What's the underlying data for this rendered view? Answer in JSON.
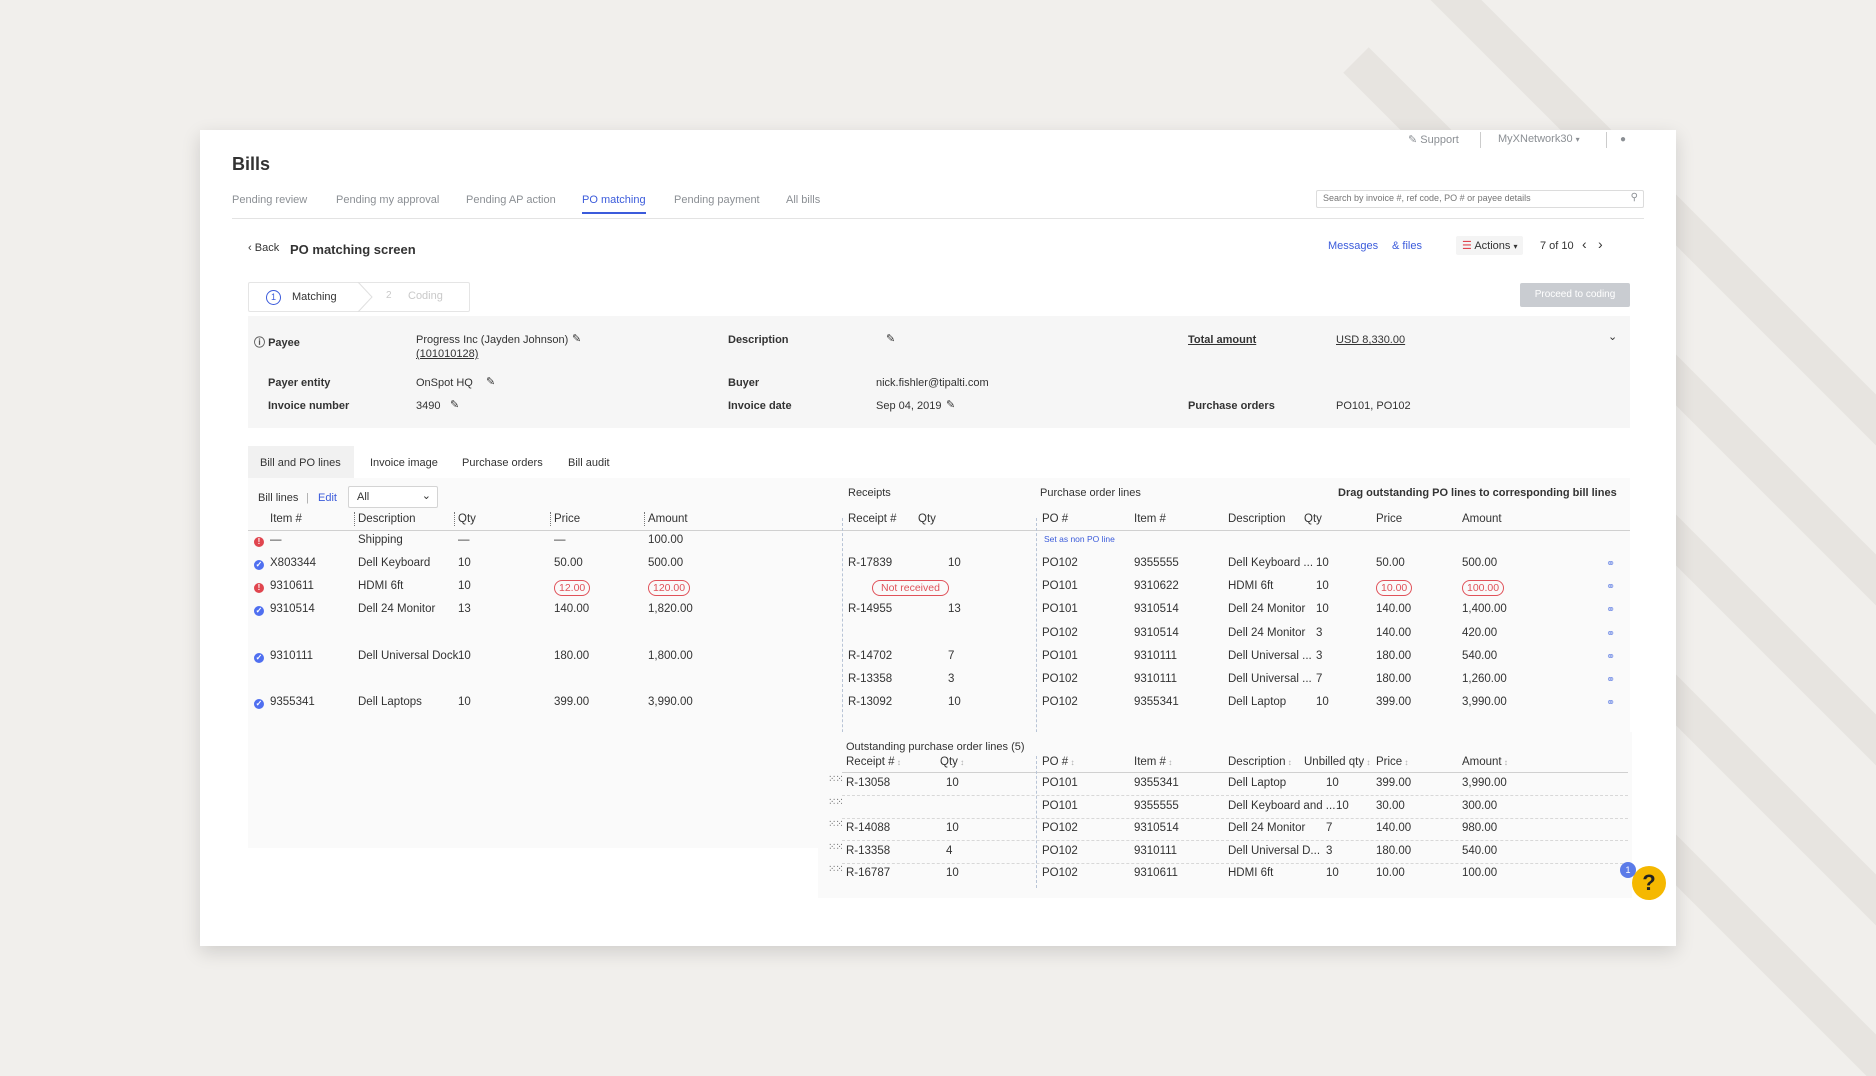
{
  "page": {
    "title": "Bills"
  },
  "topbar": {
    "support": "Support",
    "network": "MyXNetwork30"
  },
  "tabs": [
    "Pending review",
    "Pending my approval",
    "Pending AP action",
    "PO matching",
    "Pending payment",
    "All bills"
  ],
  "search": {
    "placeholder": "Search by invoice #, ref code, PO # or payee details"
  },
  "subheader": {
    "back": "Back",
    "title": "PO matching screen",
    "messages": "Messages",
    "files": "& files",
    "actions": "Actions",
    "pager": "7 of 10"
  },
  "steps": {
    "step1_num": "1",
    "step1": "Matching",
    "step2_num": "2",
    "step2": "Coding",
    "proceed": "Proceed to coding"
  },
  "details": {
    "payee_label": "Payee",
    "payee_value": "Progress Inc (Jayden Johnson)",
    "payee_id": "(101010128)",
    "description_label": "Description",
    "total_label": "Total amount",
    "total_value": "USD 8,330.00",
    "payer_label": "Payer entity",
    "payer_value": "OnSpot HQ",
    "buyer_label": "Buyer",
    "buyer_value": "nick.fishler@tipalti.com",
    "invoice_label": "Invoice number",
    "invoice_value": "3490",
    "invoice_date_label": "Invoice date",
    "invoice_date_value": "Sep 04, 2019",
    "po_label": "Purchase orders",
    "po_value": "PO101, PO102"
  },
  "subtabs": [
    "Bill and PO lines",
    "Invoice image",
    "Purchase orders",
    "Bill audit"
  ],
  "billbar": {
    "bill_lines": "Bill lines",
    "edit": "Edit",
    "filter": "All"
  },
  "sections": {
    "receipts": "Receipts",
    "po_lines": "Purchase order lines",
    "drag_hint": "Drag outstanding PO lines to corresponding bill lines",
    "set_non_po": "Set as non PO line"
  },
  "columns": {
    "bill": [
      "Item #",
      "Description",
      "Qty",
      "Price",
      "Amount"
    ],
    "receipt": [
      "Receipt #",
      "Qty"
    ],
    "po": [
      "PO #",
      "Item #",
      "Description",
      "Qty",
      "Price",
      "Amount"
    ]
  },
  "bill_rows": [
    {
      "status": "error",
      "item": "—",
      "desc": "Shipping",
      "qty": "—",
      "price": "—",
      "amount": "100.00",
      "price_flag": false,
      "amount_flag": false
    },
    {
      "status": "ok",
      "item": "X803344",
      "desc": "Dell Keyboard",
      "qty": "10",
      "price": "50.00",
      "amount": "500.00",
      "price_flag": false,
      "amount_flag": false
    },
    {
      "status": "error",
      "item": "9310611",
      "desc": "HDMI 6ft",
      "qty": "10",
      "price": "12.00",
      "amount": "120.00",
      "price_flag": true,
      "amount_flag": true
    },
    {
      "status": "ok",
      "item": "9310514",
      "desc": "Dell 24 Monitor",
      "qty": "13",
      "price": "140.00",
      "amount": "1,820.00",
      "price_flag": false,
      "amount_flag": false
    },
    {
      "status": "ok",
      "item": "9310111",
      "desc": "Dell Universal Dock",
      "qty": "10",
      "price": "180.00",
      "amount": "1,800.00",
      "price_flag": false,
      "amount_flag": false
    },
    {
      "status": "ok",
      "item": "9355341",
      "desc": "Dell Laptops",
      "qty": "10",
      "price": "399.00",
      "amount": "3,990.00",
      "price_flag": false,
      "amount_flag": false
    }
  ],
  "receipt_rows": [
    {
      "receipt": "R-17839",
      "qty": "10"
    },
    {
      "receipt": "Not received",
      "qty": "",
      "flag": true
    },
    {
      "receipt": "R-14955",
      "qty": "13"
    },
    {
      "receipt": "R-14702",
      "qty": "7"
    },
    {
      "receipt": "R-13358",
      "qty": "3"
    },
    {
      "receipt": "R-13092",
      "qty": "10"
    }
  ],
  "po_rows": [
    {
      "po": "PO102",
      "item": "9355555",
      "desc": "Dell Keyboard ...",
      "qty": "10",
      "price": "50.00",
      "amount": "500.00",
      "price_flag": false,
      "amount_flag": false
    },
    {
      "po": "PO101",
      "item": "9310622",
      "desc": "HDMI 6ft",
      "qty": "10",
      "price": "10.00",
      "amount": "100.00",
      "price_flag": true,
      "amount_flag": true
    },
    {
      "po": "PO101",
      "item": "9310514",
      "desc": "Dell 24 Monitor",
      "qty": "10",
      "price": "140.00",
      "amount": "1,400.00",
      "price_flag": false,
      "amount_flag": false
    },
    {
      "po": "PO102",
      "item": "9310514",
      "desc": "Dell 24 Monitor",
      "qty": "3",
      "price": "140.00",
      "amount": "420.00",
      "price_flag": false,
      "amount_flag": false
    },
    {
      "po": "PO101",
      "item": "9310111",
      "desc": "Dell Universal ...",
      "qty": "3",
      "price": "180.00",
      "amount": "540.00",
      "price_flag": false,
      "amount_flag": false
    },
    {
      "po": "PO102",
      "item": "9310111",
      "desc": "Dell Universal ...",
      "qty": "7",
      "price": "180.00",
      "amount": "1,260.00",
      "price_flag": false,
      "amount_flag": false
    },
    {
      "po": "PO102",
      "item": "9355341",
      "desc": "Dell Laptop",
      "qty": "10",
      "price": "399.00",
      "amount": "3,990.00",
      "price_flag": false,
      "amount_flag": false
    }
  ],
  "outstanding": {
    "title": "Outstanding purchase order lines (5)",
    "columns": [
      "Receipt #",
      "Qty",
      "PO #",
      "Item #",
      "Description",
      "Unbilled qty",
      "Price",
      "Amount"
    ],
    "rows": [
      {
        "receipt": "R-13058",
        "qty": "10",
        "po": "PO101",
        "item": "9355341",
        "desc": "Dell Laptop",
        "unbilled": "10",
        "price": "399.00",
        "amount": "3,990.00"
      },
      {
        "receipt": "",
        "qty": "",
        "po": "PO101",
        "item": "9355555",
        "desc": "Dell Keyboard and ...",
        "unbilled": "10",
        "price": "30.00",
        "amount": "300.00"
      },
      {
        "receipt": "R-14088",
        "qty": "10",
        "po": "PO102",
        "item": "9310514",
        "desc": "Dell 24 Monitor",
        "unbilled": "7",
        "price": "140.00",
        "amount": "980.00"
      },
      {
        "receipt": "R-13358",
        "qty": "4",
        "po": "PO102",
        "item": "9310111",
        "desc": "Dell Universal D...",
        "unbilled": "3",
        "price": "180.00",
        "amount": "540.00"
      },
      {
        "receipt": "R-16787",
        "qty": "10",
        "po": "PO102",
        "item": "9310611",
        "desc": "HDMI 6ft",
        "unbilled": "10",
        "price": "10.00",
        "amount": "100.00"
      }
    ]
  },
  "help": {
    "badge": "1",
    "label": "?"
  },
  "colors": {
    "accent": "#3b5bdb",
    "error": "#e0454e",
    "help": "#f5b800"
  }
}
